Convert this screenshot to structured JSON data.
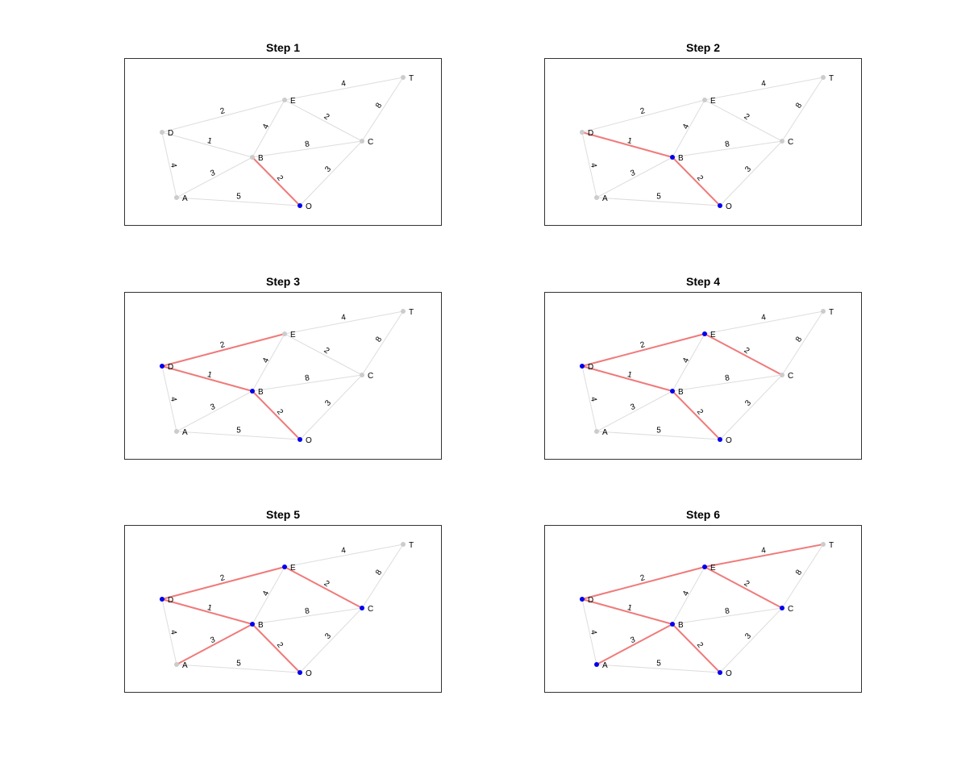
{
  "nodes": [
    {
      "id": "O",
      "label": "O"
    },
    {
      "id": "A",
      "label": "A"
    },
    {
      "id": "B",
      "label": "B"
    },
    {
      "id": "C",
      "label": "C"
    },
    {
      "id": "D",
      "label": "D"
    },
    {
      "id": "E",
      "label": "E"
    },
    {
      "id": "T",
      "label": "T"
    }
  ],
  "edges": [
    {
      "from": "O",
      "to": "A",
      "weight": "5"
    },
    {
      "from": "O",
      "to": "B",
      "weight": "2"
    },
    {
      "from": "O",
      "to": "C",
      "weight": "3"
    },
    {
      "from": "A",
      "to": "B",
      "weight": "3"
    },
    {
      "from": "A",
      "to": "D",
      "weight": "4"
    },
    {
      "from": "B",
      "to": "C",
      "weight": "8"
    },
    {
      "from": "B",
      "to": "D",
      "weight": "1"
    },
    {
      "from": "B",
      "to": "E",
      "weight": "4"
    },
    {
      "from": "C",
      "to": "E",
      "weight": "2"
    },
    {
      "from": "C",
      "to": "T",
      "weight": "8"
    },
    {
      "from": "D",
      "to": "E",
      "weight": "2"
    },
    {
      "from": "E",
      "to": "T",
      "weight": "4"
    }
  ],
  "steps": [
    {
      "title": "Step 1",
      "tree_edges": [
        [
          "O",
          "B"
        ]
      ],
      "visited": [
        "O"
      ]
    },
    {
      "title": "Step 2",
      "tree_edges": [
        [
          "O",
          "B"
        ],
        [
          "B",
          "D"
        ]
      ],
      "visited": [
        "O",
        "B"
      ]
    },
    {
      "title": "Step 3",
      "tree_edges": [
        [
          "O",
          "B"
        ],
        [
          "B",
          "D"
        ],
        [
          "D",
          "E"
        ]
      ],
      "visited": [
        "O",
        "B",
        "D"
      ]
    },
    {
      "title": "Step 4",
      "tree_edges": [
        [
          "O",
          "B"
        ],
        [
          "B",
          "D"
        ],
        [
          "D",
          "E"
        ],
        [
          "C",
          "E"
        ]
      ],
      "visited": [
        "O",
        "B",
        "D",
        "E"
      ]
    },
    {
      "title": "Step 5",
      "tree_edges": [
        [
          "O",
          "B"
        ],
        [
          "B",
          "D"
        ],
        [
          "D",
          "E"
        ],
        [
          "C",
          "E"
        ],
        [
          "A",
          "B"
        ]
      ],
      "visited": [
        "O",
        "B",
        "D",
        "E",
        "C"
      ]
    },
    {
      "title": "Step 6",
      "tree_edges": [
        [
          "O",
          "B"
        ],
        [
          "B",
          "D"
        ],
        [
          "D",
          "E"
        ],
        [
          "C",
          "E"
        ],
        [
          "A",
          "B"
        ],
        [
          "E",
          "T"
        ]
      ],
      "visited": [
        "O",
        "B",
        "D",
        "E",
        "C",
        "A"
      ]
    }
  ],
  "colors": {
    "tree_edge": "#f07a7a",
    "plain_edge": "#dddddd",
    "visited_node": "#0000ee",
    "unvisited_node": "#cccccc",
    "frame": "#333333"
  }
}
